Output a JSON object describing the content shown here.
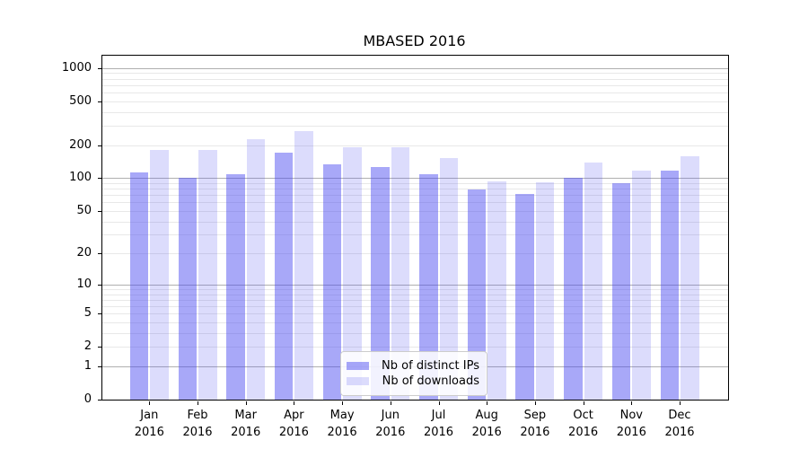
{
  "title": "MBASED 2016",
  "colors": {
    "bar_distinct_ips": "#a9a9f5",
    "bar_downloads": "#dcdcf8",
    "bar_distinct_ips_rgba": "rgba(70,70,240,0.47)",
    "bar_downloads_rgba": "rgba(70,70,240,0.19)",
    "grid_major": "#b0b0b0",
    "grid_minor": "#e8e8e8",
    "axis": "#000000"
  },
  "chart_data": {
    "type": "bar",
    "title": "MBASED 2016",
    "categories": [
      "Jan",
      "Feb",
      "Mar",
      "Apr",
      "May",
      "Jun",
      "Jul",
      "Aug",
      "Sep",
      "Oct",
      "Nov",
      "Dec"
    ],
    "x_tick_year": "2016",
    "series": [
      {
        "name": "Nb of distinct IPs",
        "color": "rgba(70,70,240,0.47)",
        "values": [
          112,
          100,
          109,
          172,
          133,
          126,
          109,
          78,
          72,
          101,
          90,
          118
        ]
      },
      {
        "name": "Nb of downloads",
        "color": "rgba(70,70,240,0.19)",
        "values": [
          180,
          180,
          225,
          268,
          191,
          190,
          152,
          93,
          92,
          139,
          118,
          159
        ]
      }
    ],
    "xlabel": "",
    "ylabel": "",
    "yscale": "log10(value+1)",
    "y_ticks": [
      1000,
      500,
      200,
      100,
      50,
      20,
      10,
      5,
      2,
      1,
      0
    ],
    "y_major_gridlines": [
      1,
      10,
      100,
      1000
    ],
    "ylim": [
      0,
      1275
    ],
    "grid": "on",
    "legend_position": "lower center"
  }
}
